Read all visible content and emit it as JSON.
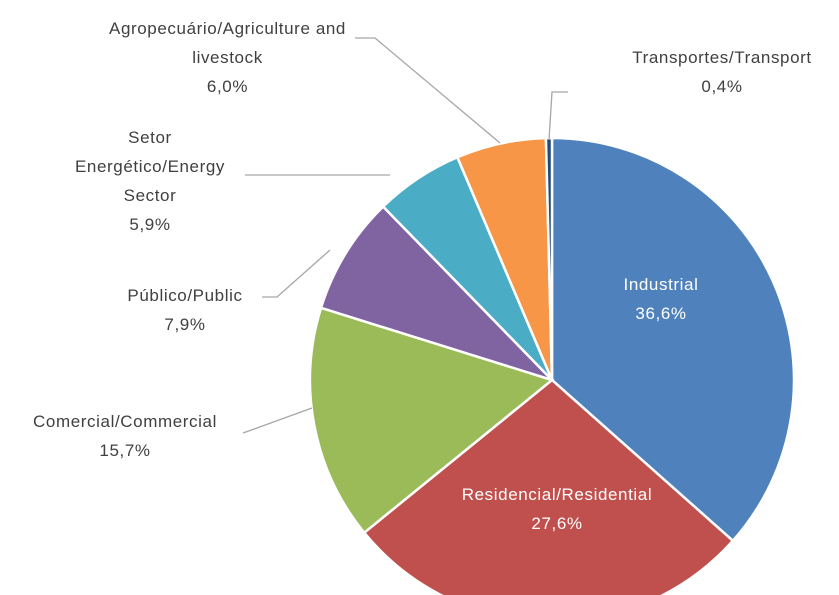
{
  "chart_data": {
    "type": "pie",
    "categories": [
      "Industrial",
      "Residencial/Residential",
      "Comercial/Commercial",
      "Público/Public",
      "Setor Energético/Energy Sector",
      "Agropecuário/Agriculture and livestock",
      "Transportes/Transport"
    ],
    "values": [
      36.6,
      27.6,
      15.7,
      7.9,
      5.9,
      6.0,
      0.4
    ],
    "value_labels": [
      "36,6%",
      "27,6%",
      "15,7%",
      "7,9%",
      "5,9%",
      "6,0%",
      "0,4%"
    ],
    "colors": [
      "#4f81bd",
      "#c0504d",
      "#9bbb59",
      "#8064a2",
      "#4bacc6",
      "#f79646",
      "#1f497d"
    ]
  }
}
